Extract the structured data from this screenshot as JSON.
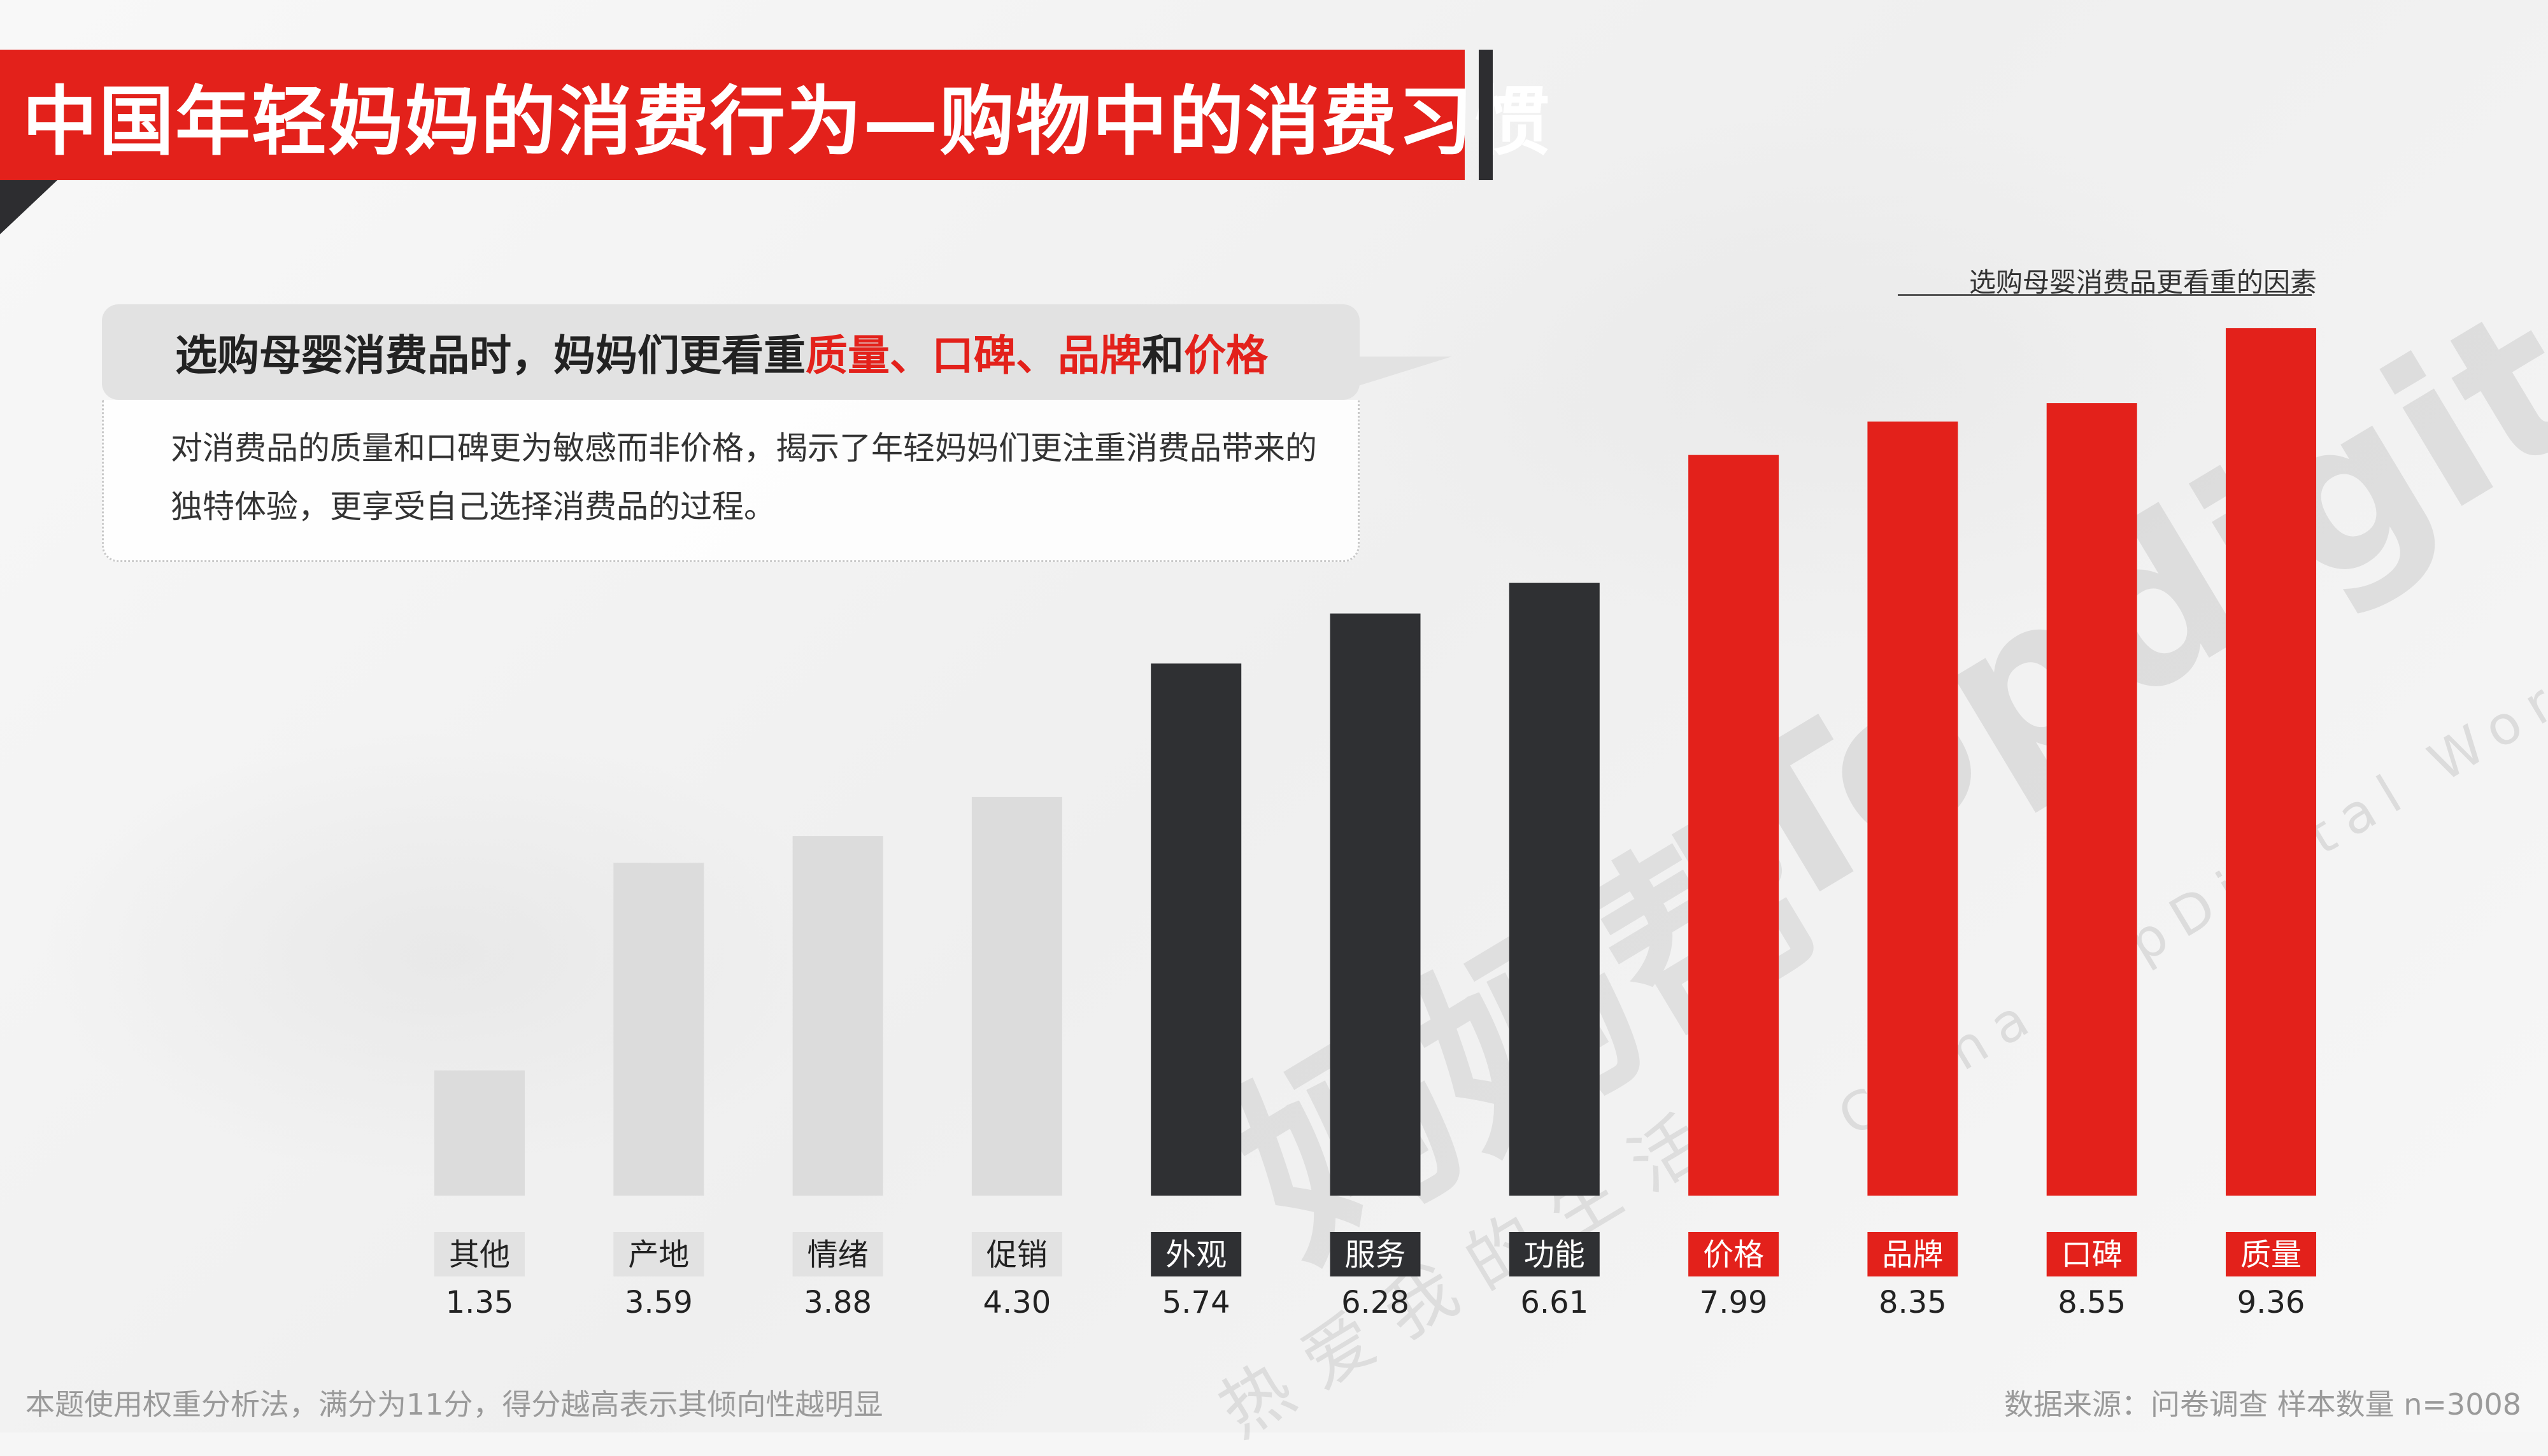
{
  "title": "中国年轻妈妈的消费行为—购物中的消费习惯",
  "callout": {
    "head_prefix": "选购母婴消费品时，妈妈们更看重",
    "hl1": "质量",
    "sep1": "、",
    "hl2": "口碑",
    "sep2": "、",
    "hl3": "品牌",
    "joiner": "和",
    "hl4": "价格",
    "body": "对消费品的质量和口碑更为敏感而非价格，揭示了年轻妈妈们更注重消费品带来的独特体验，更享受自己选择消费品的过程。"
  },
  "watermark": {
    "brand": "Topdigital",
    "brand_sub": "China TopDigital World",
    "cn": "妈妈帮",
    "cn_sub": "热爱我的生活"
  },
  "footer": {
    "note": "本题使用权重分析法，满分为11分，得分越高表示其倾向性越明显",
    "source": "数据来源：问卷调查 样本数量 n=3008"
  },
  "colors": {
    "accent": "#e3211b",
    "dark": "#2f3033",
    "light": "#dcdcdc"
  },
  "chart_data": {
    "type": "bar",
    "title": "选购母婴消费品更看重的因素",
    "categories": [
      "其他",
      "产地",
      "情绪",
      "促销",
      "外观",
      "服务",
      "功能",
      "价格",
      "品牌",
      "口碑",
      "质量"
    ],
    "values": [
      1.35,
      3.59,
      3.88,
      4.3,
      5.74,
      6.28,
      6.61,
      7.99,
      8.35,
      8.55,
      9.36
    ],
    "value_labels": [
      "1.35",
      "3.59",
      "3.88",
      "4.30",
      "5.74",
      "6.28",
      "6.61",
      "7.99",
      "8.35",
      "8.55",
      "9.36"
    ],
    "groups": [
      "light",
      "light",
      "light",
      "light",
      "dark",
      "dark",
      "dark",
      "accent",
      "accent",
      "accent",
      "accent"
    ],
    "ylim": [
      0,
      10
    ],
    "xlabel": "",
    "ylabel": "",
    "grid": false,
    "legend": "none"
  }
}
